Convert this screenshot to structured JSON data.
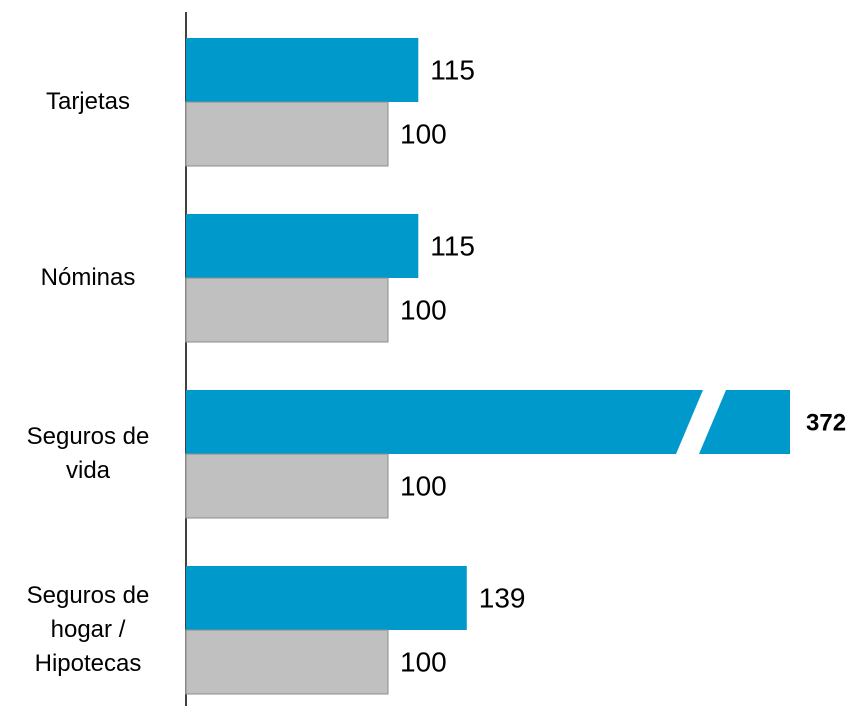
{
  "chart_data": {
    "type": "bar",
    "orientation": "horizontal",
    "categories": [
      "Tarjetas",
      "Nóminas",
      "Seguros de vida",
      "Seguros de hogar / Hipotecas"
    ],
    "series": [
      {
        "color": "#0099cc",
        "values": [
          115,
          115,
          372,
          139
        ]
      },
      {
        "color": "#c0c0c0",
        "values": [
          100,
          100,
          100,
          100
        ]
      }
    ]
  }
}
